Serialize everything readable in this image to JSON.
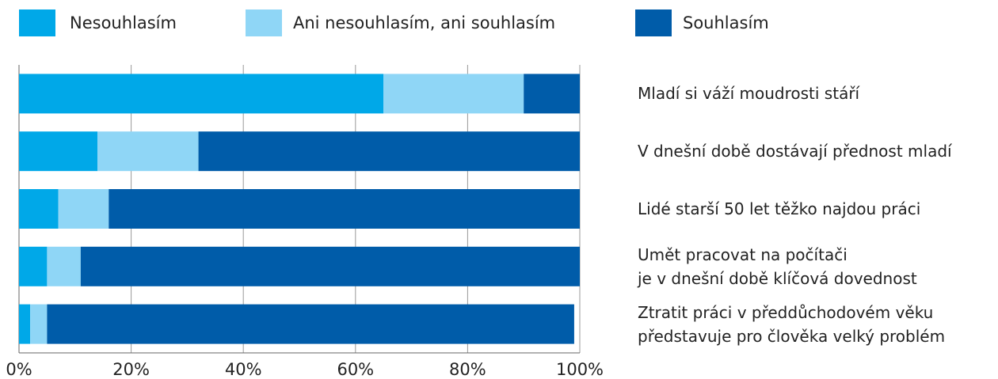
{
  "chart_data": {
    "type": "stacked-bar-horizontal",
    "categories": [
      "Mladí si váží moudrosti stáří",
      "V dnešní době dostávají přednost mladí",
      "Lidé starší 50 let těžko najdou práci",
      "Umět pracovat na počítači\nje v dnešní době klíčová dovednost",
      "Ztratit práci v předdůchodovém věku\npředstavuje pro člověka velký problém"
    ],
    "series": [
      {
        "name": "Nesouhlasím",
        "color": "#00a8e8",
        "values": [
          65,
          14,
          7,
          5,
          2
        ]
      },
      {
        "name": "Ani nesouhlasím, ani souhlasím",
        "color": "#8fd6f6",
        "values": [
          25,
          18,
          9,
          6,
          3
        ]
      },
      {
        "name": "Souhlasím",
        "color": "#005ca9",
        "values": [
          10,
          68,
          84,
          89,
          94
        ]
      }
    ],
    "xlim": [
      0,
      100
    ],
    "xticks": [
      {
        "value": 0,
        "label": "0%"
      },
      {
        "value": 20,
        "label": "20%"
      },
      {
        "value": 40,
        "label": "40%"
      },
      {
        "value": 60,
        "label": "60%"
      },
      {
        "value": 80,
        "label": "80%"
      },
      {
        "value": 100,
        "label": "100%"
      }
    ],
    "grid": true
  }
}
